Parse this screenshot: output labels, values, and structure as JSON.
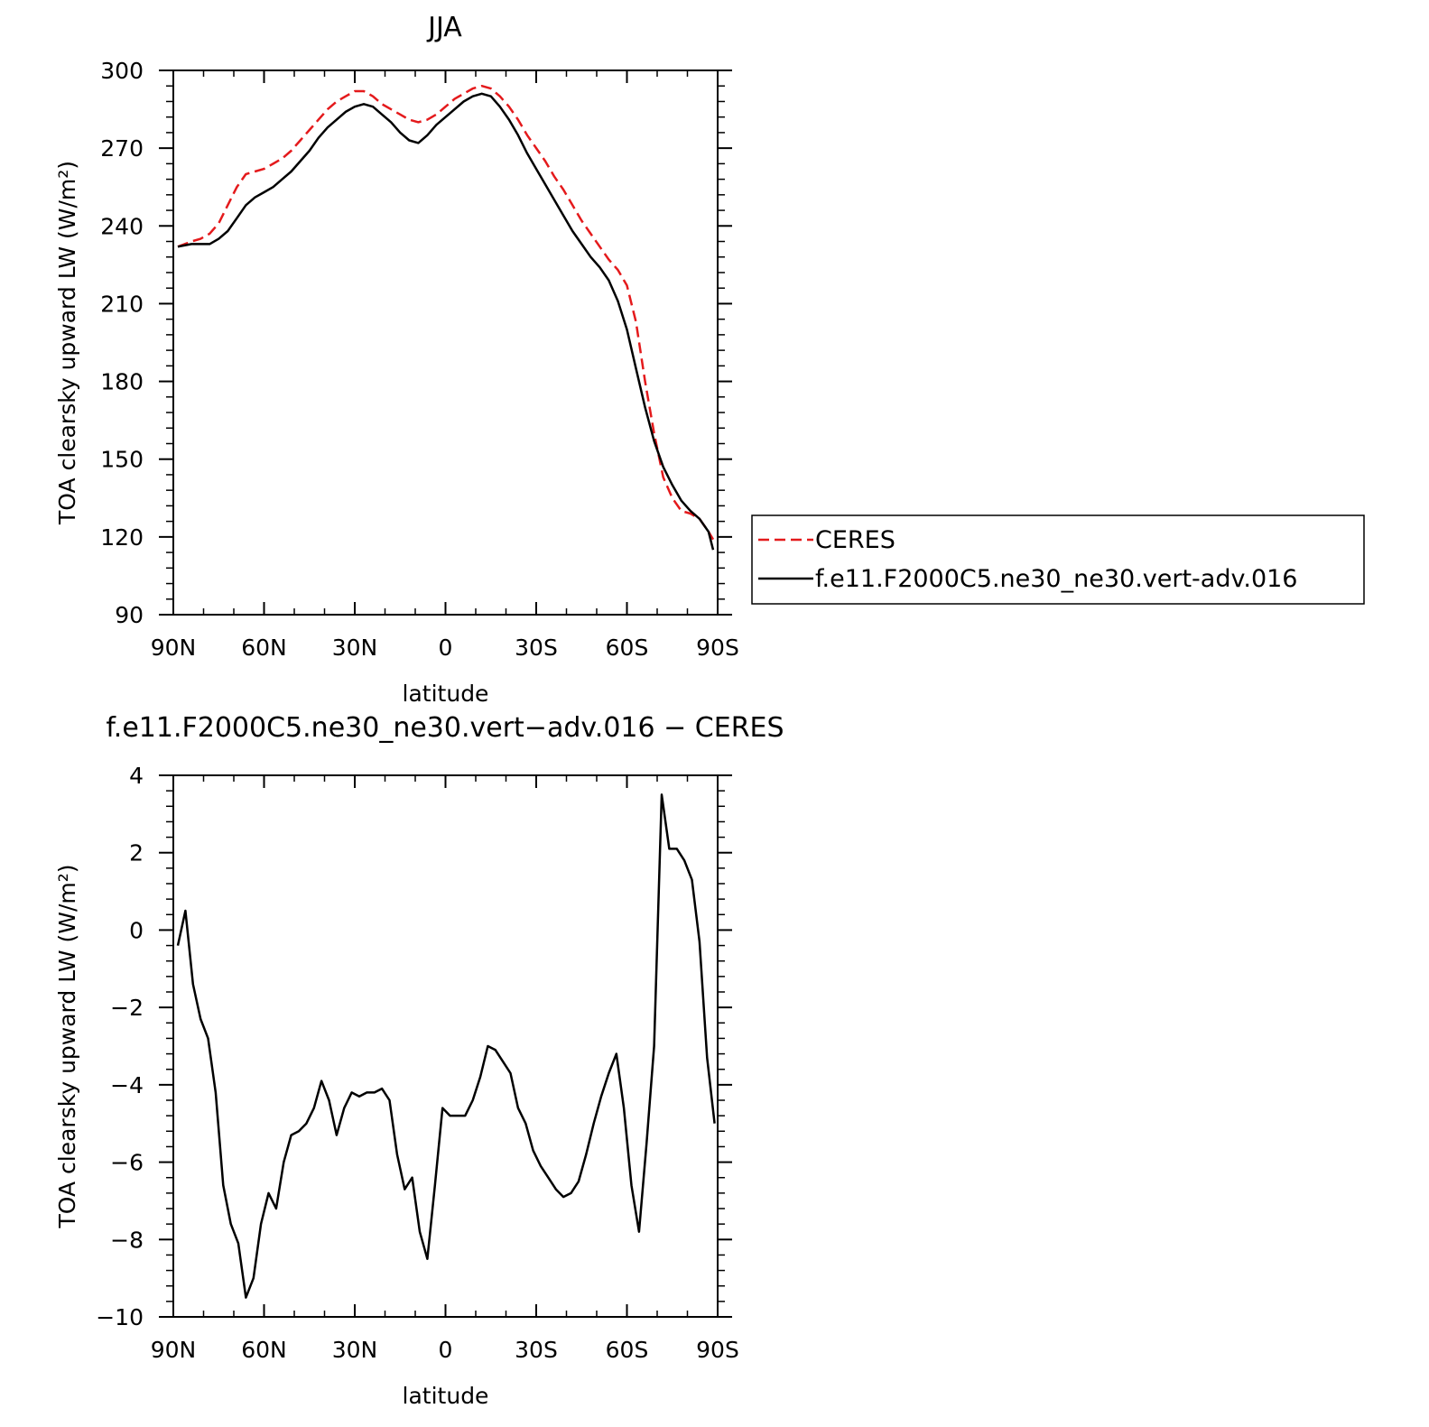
{
  "chart_data": [
    {
      "type": "line",
      "title": "JJA",
      "xlabel": "latitude",
      "ylabel": "TOA clearsky upward LW (W/m²)",
      "xlim": [
        90,
        -90
      ],
      "ylim": [
        90,
        300
      ],
      "x_ticks": [
        90,
        60,
        30,
        0,
        -30,
        -60,
        -90
      ],
      "x_tick_labels": [
        "90N",
        "60N",
        "30N",
        "0",
        "30S",
        "60S",
        "90S"
      ],
      "y_ticks": [
        90,
        120,
        150,
        180,
        210,
        240,
        270,
        300
      ],
      "y_tick_labels": [
        "90",
        "120",
        "150",
        "180",
        "210",
        "240",
        "270",
        "300"
      ],
      "legend_position": "right",
      "series": [
        {
          "name": "CERES",
          "color": "#e41a1c",
          "dash": "dashed",
          "x": [
            88.5,
            84,
            81,
            78,
            75,
            72,
            69,
            66,
            63,
            60,
            57,
            54,
            51,
            48,
            45,
            42,
            39,
            36,
            33,
            30,
            27,
            24,
            21,
            18,
            15,
            12,
            9,
            6,
            3,
            0,
            -3,
            -6,
            -9,
            -12,
            -15,
            -18,
            -21,
            -24,
            -27,
            -30,
            -33,
            -36,
            -39,
            -42,
            -45,
            -48,
            -51,
            -54,
            -57,
            -60,
            -63,
            -66,
            -69,
            -72,
            -75,
            -78,
            -81,
            -84,
            -87,
            -88.5
          ],
          "y": [
            232,
            234,
            235,
            237,
            241,
            248,
            255,
            260,
            261,
            262,
            264,
            266,
            269,
            273,
            277,
            281,
            285,
            288,
            290,
            292,
            292,
            290,
            287,
            285,
            283,
            281,
            280,
            281,
            283,
            286,
            289,
            291,
            293,
            294,
            293,
            290,
            286,
            281,
            275,
            270,
            265,
            259,
            254,
            248,
            242,
            237,
            232,
            227,
            223,
            217,
            203,
            180,
            160,
            143,
            135,
            130,
            129,
            127,
            122,
            119
          ]
        },
        {
          "name": "f.e11.F2000C5.ne30_ne30.vert-adv.016",
          "color": "#000000",
          "dash": "solid",
          "x": [
            88.5,
            84,
            81,
            78,
            75,
            72,
            69,
            66,
            63,
            60,
            57,
            54,
            51,
            48,
            45,
            42,
            39,
            36,
            33,
            30,
            27,
            24,
            21,
            18,
            15,
            12,
            9,
            6,
            3,
            0,
            -3,
            -6,
            -9,
            -12,
            -15,
            -18,
            -21,
            -24,
            -27,
            -30,
            -33,
            -36,
            -39,
            -42,
            -45,
            -48,
            -51,
            -54,
            -57,
            -60,
            -63,
            -66,
            -69,
            -72,
            -75,
            -78,
            -81,
            -84,
            -87,
            -88.5
          ],
          "y": [
            232,
            233,
            233,
            233,
            235,
            238,
            243,
            248,
            251,
            253,
            255,
            258,
            261,
            265,
            269,
            274,
            278,
            281,
            284,
            286,
            287,
            286,
            283,
            280,
            276,
            273,
            272,
            275,
            279,
            282,
            285,
            288,
            290,
            291,
            290,
            286,
            281,
            275,
            268,
            262,
            256,
            250,
            244,
            238,
            233,
            228,
            224,
            219,
            211,
            200,
            185,
            170,
            157,
            147,
            140,
            134,
            130,
            127,
            122,
            115
          ]
        }
      ]
    },
    {
      "type": "line",
      "title": "f.e11.F2000C5.ne30_ne30.vert−adv.016 − CERES",
      "xlabel": "latitude",
      "ylabel": "TOA clearsky upward LW (W/m²)",
      "xlim": [
        90,
        -90
      ],
      "ylim": [
        -10,
        4
      ],
      "x_ticks": [
        90,
        60,
        30,
        0,
        -30,
        -60,
        -90
      ],
      "x_tick_labels": [
        "90N",
        "60N",
        "30N",
        "0",
        "30S",
        "60S",
        "90S"
      ],
      "y_ticks": [
        -10,
        -8,
        -6,
        -4,
        -2,
        0,
        2,
        4
      ],
      "y_tick_labels": [
        "−10",
        "−8",
        "−6",
        "−4",
        "−2",
        "0",
        "2",
        "4"
      ],
      "series": [
        {
          "color": "#000000",
          "dash": "solid",
          "x": [
            88.5,
            86,
            83.5,
            81,
            78.5,
            76,
            73.5,
            71,
            68.5,
            66,
            63.5,
            61,
            58.5,
            56,
            53.5,
            51,
            48.5,
            46,
            43.5,
            41,
            38.5,
            36,
            33.5,
            31,
            28.5,
            26,
            23.5,
            21,
            18.5,
            16,
            13.5,
            11,
            8.5,
            6,
            3.5,
            1,
            -1.5,
            -4,
            -6.5,
            -9,
            -11.5,
            -14,
            -16.5,
            -19,
            -21.5,
            -24,
            -26.5,
            -29,
            -31.5,
            -34,
            -36.5,
            -39,
            -41.5,
            -44,
            -46.5,
            -49,
            -51.5,
            -54,
            -56.5,
            -59,
            -61.5,
            -64,
            -66.5,
            -69,
            -71.5,
            -74,
            -76.5,
            -79,
            -81.5,
            -84,
            -86.5,
            -89
          ],
          "y": [
            -0.4,
            0.5,
            -1.4,
            -2.3,
            -2.8,
            -4.2,
            -6.6,
            -7.6,
            -8.1,
            -9.5,
            -9.0,
            -7.6,
            -6.8,
            -7.2,
            -6.0,
            -5.3,
            -5.2,
            -5.0,
            -4.6,
            -3.9,
            -4.4,
            -5.3,
            -4.6,
            -4.2,
            -4.3,
            -4.2,
            -4.2,
            -4.1,
            -4.4,
            -5.8,
            -6.7,
            -6.4,
            -7.8,
            -8.5,
            -6.6,
            -4.6,
            -4.8,
            -4.8,
            -4.8,
            -4.4,
            -3.8,
            -3.0,
            -3.1,
            -3.4,
            -3.7,
            -4.6,
            -5.0,
            -5.7,
            -6.1,
            -6.4,
            -6.7,
            -6.9,
            -6.8,
            -6.5,
            -5.8,
            -5.0,
            -4.3,
            -3.7,
            -3.2,
            -4.6,
            -6.6,
            -7.8,
            -5.5,
            -3.0,
            3.5,
            2.1,
            2.1,
            1.8,
            1.3,
            -0.3,
            -3.3,
            -5.0
          ]
        }
      ]
    }
  ]
}
